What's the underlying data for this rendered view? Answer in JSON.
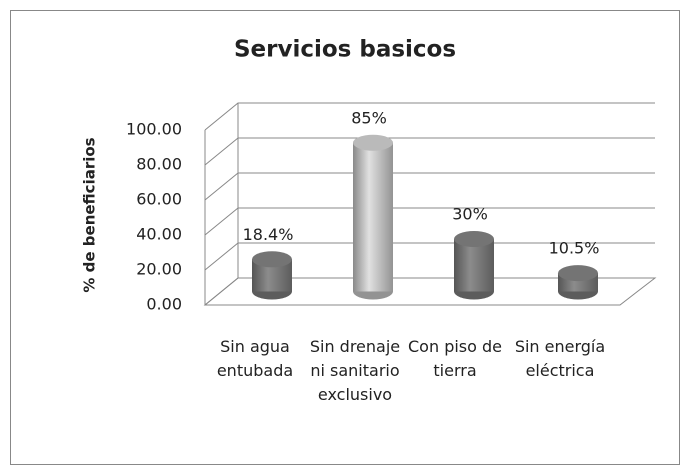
{
  "chart_data": {
    "type": "bar",
    "title": "Servicios  basicos",
    "y_label": "% de beneficiarios",
    "categories": [
      "Sin agua entubada",
      "Sin drenaje ni sanitario exclusivo",
      "Con piso de tierra",
      "Sin energía eléctrica"
    ],
    "values": [
      18.4,
      85,
      30,
      10.5
    ],
    "value_labels": [
      "18.4%",
      "85%",
      "30%",
      "10.5%"
    ],
    "colors": [
      "#7a7a7a",
      "#c4c4c4",
      "#7a7a7a",
      "#7a7a7a"
    ],
    "ylim": [
      0,
      100
    ],
    "yticks": [
      {
        "value": 0,
        "label": "0.00"
      },
      {
        "value": 20,
        "label": "20.00"
      },
      {
        "value": 40,
        "label": "40.00"
      },
      {
        "value": 60,
        "label": "60.00"
      },
      {
        "value": 80,
        "label": "80.00"
      },
      {
        "value": 100,
        "label": "100.00"
      }
    ],
    "grid": true
  }
}
